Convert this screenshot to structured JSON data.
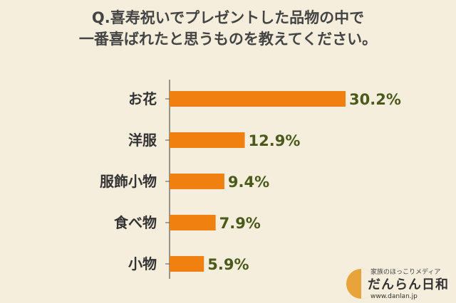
{
  "chart_data": {
    "type": "bar",
    "orientation": "horizontal",
    "title_lines": [
      "Q.喜寿祝いでプレゼントした品物の中で",
      "一番喜ばれたと思うものを教えてください。"
    ],
    "categories": [
      "お花",
      "洋服",
      "服飾小物",
      "食べ物",
      "小物"
    ],
    "values": [
      30.2,
      12.9,
      9.4,
      7.9,
      5.9
    ],
    "value_labels": [
      "30.2%",
      "12.9%",
      "9.4%",
      "7.9%",
      "5.9%"
    ],
    "unit": "%",
    "xlim": [
      0,
      34
    ],
    "bar_color": "#f08010",
    "label_color": "#4a5a1a",
    "category_color": "#333333",
    "axis_color": "#555555",
    "grid": false,
    "legend": "none"
  },
  "logo": {
    "tagline": "家族のほっこりメディア",
    "name": "だんらん日和",
    "url": "www.danlan.jp"
  }
}
